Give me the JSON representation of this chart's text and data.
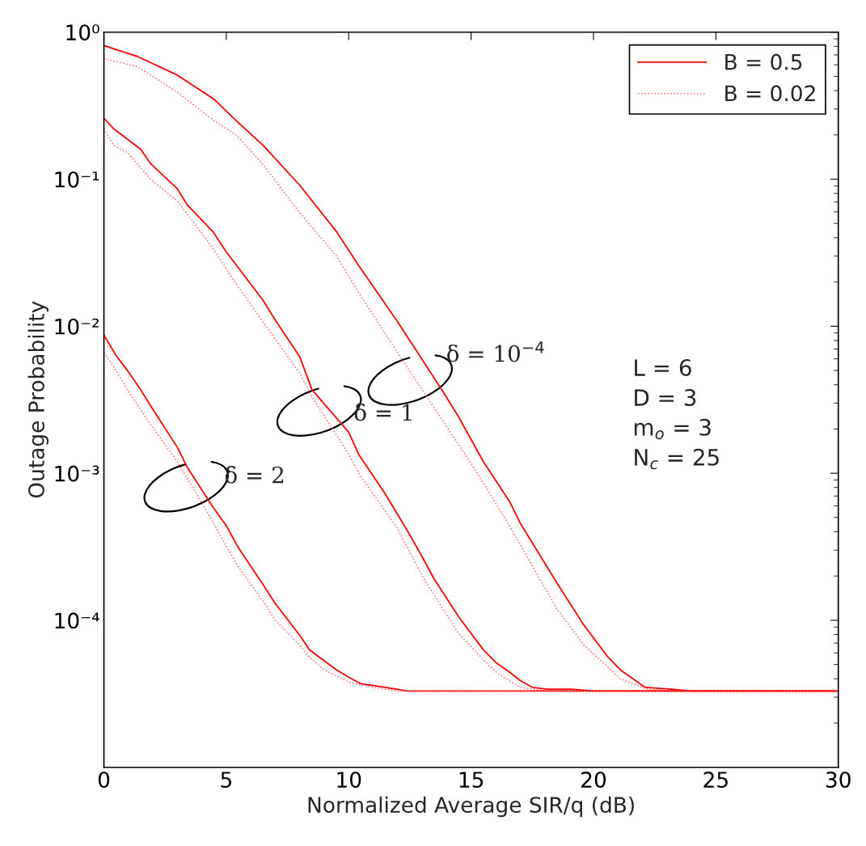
{
  "chart_data": {
    "type": "line",
    "xlabel": "Normalized Average SIR/q (dB)",
    "ylabel": "Outage Probability",
    "xlim": [
      0,
      30
    ],
    "xticks": [
      0,
      5,
      10,
      15,
      20,
      25,
      30
    ],
    "ylim": [
      1e-05,
      1
    ],
    "log": "y",
    "yticks": [
      {
        "value": 1,
        "label": "10⁰"
      },
      {
        "value": 0.1,
        "label": "10⁻¹"
      },
      {
        "value": 0.01,
        "label": "10⁻²"
      },
      {
        "value": 0.001,
        "label": "10⁻³"
      },
      {
        "value": 0.0001,
        "label": "10⁻⁴"
      }
    ],
    "grid": false,
    "legend": "top right",
    "marker": "none",
    "series": [
      {
        "name": "B = 0.5",
        "color": "#ff0000",
        "line_style": "solid",
        "x": [
          0,
          1.4,
          3.0,
          4.5,
          5.4,
          6.5,
          8.0,
          9.5,
          10.4,
          12.0,
          13.8,
          14.5,
          15.5,
          16.6,
          17.0,
          18.5,
          19.6,
          20.6,
          21.1,
          22.1,
          23.2,
          24,
          30
        ],
        "values": [
          0.81,
          0.68,
          0.51,
          0.35,
          0.25,
          0.17,
          0.091,
          0.044,
          0.026,
          0.0107,
          0.0037,
          0.0024,
          0.0012,
          0.00063,
          0.00046,
          0.00018,
          9.3e-05,
          5.6e-05,
          4.6e-05,
          3.5e-05,
          3.4e-05,
          3.3e-05,
          3.3e-05
        ]
      },
      {
        "name": "B = 0.02",
        "color": "#ff6666",
        "line_style": "dotted",
        "x": [
          0,
          1.4,
          3.0,
          4.5,
          5.4,
          6.5,
          8.0,
          9.5,
          10.4,
          12.0,
          13.0,
          15.1,
          16.6,
          18.5,
          19.6,
          21.1,
          22.2,
          23.3,
          30
        ],
        "values": [
          0.66,
          0.58,
          0.39,
          0.25,
          0.2,
          0.126,
          0.059,
          0.03,
          0.017,
          0.0066,
          0.0037,
          0.0011,
          0.00043,
          0.00012,
          6.8e-05,
          4e-05,
          3.4e-05,
          3.3e-05,
          3.3e-05
        ]
      },
      {
        "color": "#ff0000",
        "line_style": "solid",
        "x": [
          0,
          0.4,
          1.5,
          1.9,
          3.0,
          3.4,
          4.45,
          5.0,
          6.5,
          7.0,
          8.0,
          8.5,
          10.0,
          10.4,
          11.5,
          12.5,
          13.0,
          13.5,
          14.5,
          15.5,
          16.05,
          16.6,
          17.0,
          17.5,
          18.1,
          19.1,
          20,
          30
        ],
        "values": [
          0.26,
          0.22,
          0.16,
          0.128,
          0.086,
          0.067,
          0.044,
          0.032,
          0.015,
          0.011,
          0.0062,
          0.0037,
          0.0019,
          0.00135,
          0.00072,
          0.00038,
          0.00027,
          0.00019,
          0.000105,
          6.3e-05,
          5.1e-05,
          4.4e-05,
          3.9e-05,
          3.5e-05,
          3.4e-05,
          3.4e-05,
          3.3e-05,
          3.3e-05
        ]
      },
      {
        "color": "#ff6666",
        "line_style": "dotted",
        "x": [
          0,
          0.4,
          1.0,
          1.9,
          3.0,
          4.45,
          5.35,
          6.5,
          8.0,
          8.5,
          10.0,
          10.5,
          12.0,
          13.0,
          14.5,
          15.5,
          16.05,
          17.0,
          18.0,
          30
        ],
        "values": [
          0.22,
          0.17,
          0.15,
          0.1,
          0.071,
          0.034,
          0.02,
          0.0107,
          0.0048,
          0.0033,
          0.00135,
          0.00095,
          0.00042,
          0.0002,
          8.1e-05,
          5.4e-05,
          4.4e-05,
          3.5e-05,
          3.3e-05,
          3.3e-05
        ]
      },
      {
        "color": "#ff0000",
        "line_style": "solid",
        "x": [
          0,
          0.5,
          1.0,
          1.5,
          1.95,
          3.0,
          3.4,
          4.45,
          5.0,
          5.5,
          6.5,
          7.0,
          8.0,
          8.4,
          9.0,
          9.5,
          10.0,
          10.5,
          11.5,
          12.4,
          30
        ],
        "values": [
          0.0087,
          0.0063,
          0.0049,
          0.0037,
          0.0028,
          0.0015,
          0.0011,
          0.00059,
          0.00044,
          0.00031,
          0.000175,
          0.00013,
          7.9e-05,
          6.3e-05,
          5.3e-05,
          4.6e-05,
          4.1e-05,
          3.7e-05,
          3.5e-05,
          3.3e-05,
          3.3e-05
        ]
      },
      {
        "color": "#ff6666",
        "line_style": "dotted",
        "x": [
          0,
          0.4,
          1.0,
          1.95,
          3.0,
          4.0,
          5.0,
          5.5,
          6.5,
          7.0,
          8.0,
          8.4,
          9.0,
          10.0,
          11.0,
          12.0,
          30
        ],
        "values": [
          0.0066,
          0.0053,
          0.0036,
          0.0021,
          0.0012,
          0.00063,
          0.00032,
          0.00023,
          0.000135,
          0.0001,
          6.8e-05,
          5.6e-05,
          4.6e-05,
          3.8e-05,
          3.5e-05,
          3.3e-05,
          3.3e-05
        ]
      }
    ],
    "annotations": [
      "δ = 10$^{−4}$",
      "δ = 1",
      "δ = 2",
      "L = 6",
      "D = 3",
      "m$_{o}$ = 3",
      "N$_{c}$ = 25"
    ]
  }
}
